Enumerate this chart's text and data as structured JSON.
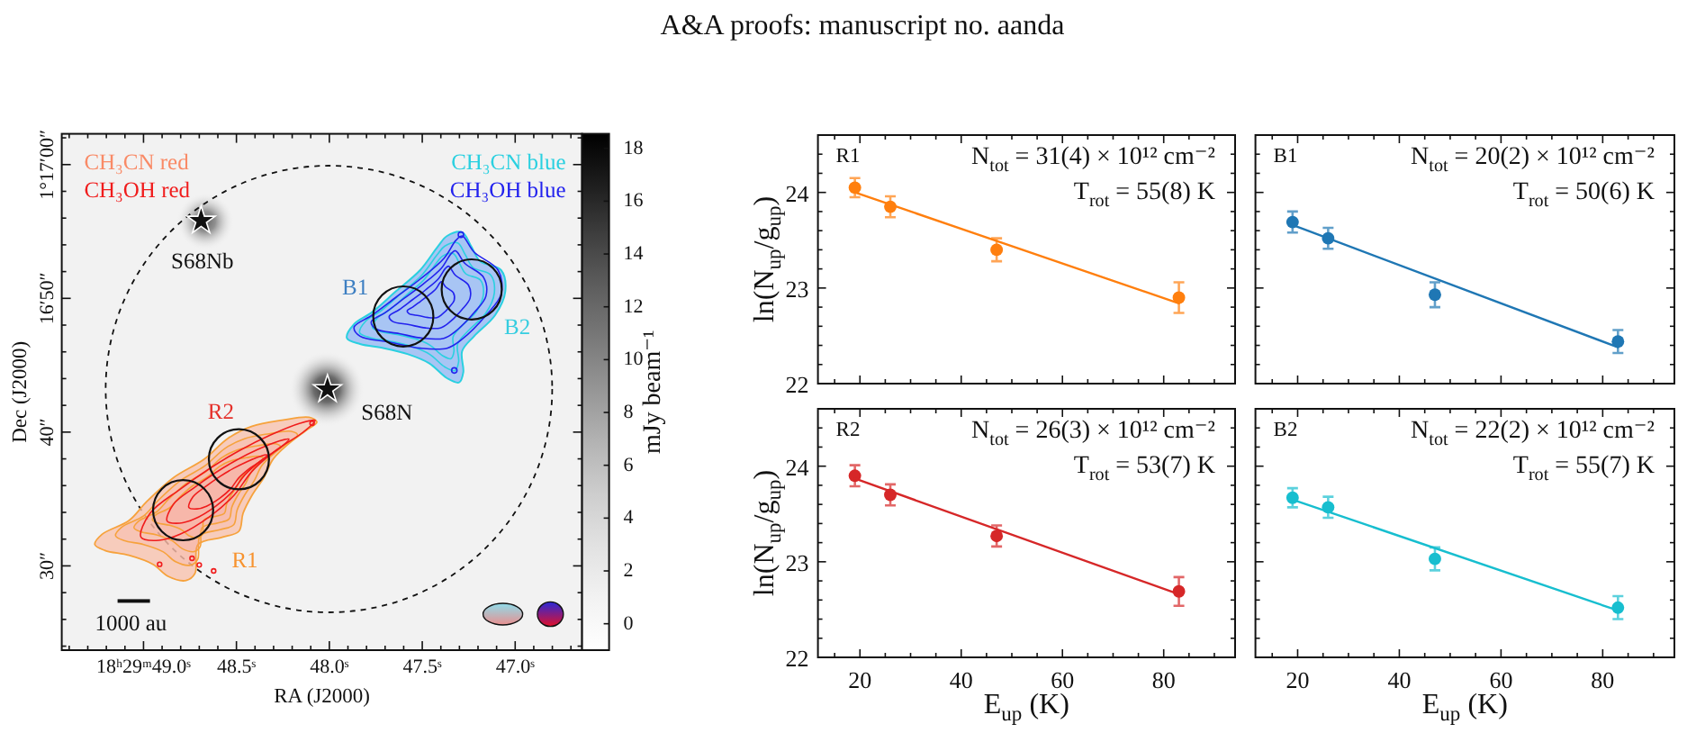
{
  "chart_data": [
    {
      "type": "scatter",
      "xlabel": "RA (J2000)",
      "ylabel": "Dec (J2000)",
      "clabel": "mJy beam⁻¹",
      "xlim": [
        49.44,
        46.64
      ],
      "ylim": [
        23.7,
        62.3
      ],
      "xticks": [
        {
          "value": 49.4,
          "label": null
        },
        {
          "value": 49.3,
          "label": null
        },
        {
          "value": 49.2,
          "label": null
        },
        {
          "value": 49.1,
          "label": null
        },
        {
          "value": 49.0,
          "label": "18ʰ29ᵐ49.0ˢ"
        },
        {
          "value": 48.9,
          "label": null
        },
        {
          "value": 48.8,
          "label": null
        },
        {
          "value": 48.7,
          "label": null
        },
        {
          "value": 48.6,
          "label": null
        },
        {
          "value": 48.5,
          "label": "48.5ˢ"
        },
        {
          "value": 48.4,
          "label": null
        },
        {
          "value": 48.3,
          "label": null
        },
        {
          "value": 48.2,
          "label": null
        },
        {
          "value": 48.1,
          "label": null
        },
        {
          "value": 48.0,
          "label": "48.0ˢ"
        },
        {
          "value": 47.9,
          "label": null
        },
        {
          "value": 47.8,
          "label": null
        },
        {
          "value": 47.7,
          "label": null
        },
        {
          "value": 47.6,
          "label": null
        },
        {
          "value": 47.5,
          "label": "47.5ˢ"
        },
        {
          "value": 47.4,
          "label": null
        },
        {
          "value": 47.3,
          "label": null
        },
        {
          "value": 47.2,
          "label": null
        },
        {
          "value": 47.1,
          "label": null
        },
        {
          "value": 47.0,
          "label": "47.0ˢ"
        },
        {
          "value": 46.9,
          "label": null
        },
        {
          "value": 46.8,
          "label": null
        },
        {
          "value": 46.7,
          "label": null
        }
      ],
      "yticks": [
        {
          "value": 24,
          "label": null
        },
        {
          "value": 26,
          "label": null
        },
        {
          "value": 28,
          "label": null
        },
        {
          "value": 30,
          "label": "30″"
        },
        {
          "value": 32,
          "label": null
        },
        {
          "value": 34,
          "label": null
        },
        {
          "value": 36,
          "label": null
        },
        {
          "value": 38,
          "label": null
        },
        {
          "value": 40,
          "label": "40″"
        },
        {
          "value": 42,
          "label": null
        },
        {
          "value": 44,
          "label": null
        },
        {
          "value": 46,
          "label": null
        },
        {
          "value": 48,
          "label": null
        },
        {
          "value": 50,
          "label": "16′50″"
        },
        {
          "value": 52,
          "label": null
        },
        {
          "value": 54,
          "label": null
        },
        {
          "value": 56,
          "label": null
        },
        {
          "value": 58,
          "label": null
        },
        {
          "value": 60,
          "label": "1°17′00″"
        },
        {
          "value": 62,
          "label": null
        }
      ],
      "clim": [
        -1.0,
        18.55
      ],
      "cticks": [
        0,
        2,
        4,
        6,
        8,
        10,
        12,
        14,
        16,
        18
      ],
      "series": [
        {
          "type": "scatter",
          "marker": "star",
          "color": "#111111",
          "x": [
            48.69,
            48.01
          ],
          "values": [
            55.8,
            43.2
          ]
        }
      ],
      "annotations": [
        "A&A proofs: manuscript no. aanda",
        "CH₃CN red",
        "CH₃OH red",
        "CH₃CN blue",
        "CH₃OH blue",
        {
          "text": "S68Nb",
          "x": 48.69,
          "y": 55.8
        },
        {
          "text": "S68N",
          "x": 48.01,
          "y": 43.2
        },
        "B1",
        "B2",
        "R2",
        "R1",
        "1000 au"
      ]
    },
    {
      "type": "scatter",
      "xlim": [
        11.7,
        94.1
      ],
      "ylim": [
        22,
        24.6
      ],
      "tick_labels": "y",
      "ylabel": "ln(N$_{up}$/g$_{up}$)",
      "xticks": [
        {
          "value": 15,
          "label": null
        },
        20,
        {
          "value": 25,
          "label": null
        },
        {
          "value": 30,
          "label": null
        },
        {
          "value": 35,
          "label": null
        },
        40,
        {
          "value": 45,
          "label": null
        },
        {
          "value": 50,
          "label": null
        },
        {
          "value": 55,
          "label": null
        },
        60,
        {
          "value": 65,
          "label": null
        },
        {
          "value": 70,
          "label": null
        },
        {
          "value": 75,
          "label": null
        },
        80,
        {
          "value": 85,
          "label": null
        },
        {
          "value": 90,
          "label": null
        }
      ],
      "yticks": [
        22,
        {
          "value": 22.2,
          "label": null
        },
        {
          "value": 22.4,
          "label": null
        },
        {
          "value": 22.6,
          "label": null
        },
        {
          "value": 22.8,
          "label": null
        },
        23,
        {
          "value": 23.2,
          "label": null
        },
        {
          "value": 23.4,
          "label": null
        },
        {
          "value": 23.6,
          "label": null
        },
        {
          "value": 23.8,
          "label": null
        },
        24,
        {
          "value": 24.2,
          "label": null
        },
        {
          "value": 24.4,
          "label": null
        }
      ],
      "annotations": [
        "R1",
        "N$_{tot}$ = 31(4) × 10¹² cm⁻²",
        "T$_{rot}$ = 55(8) K"
      ],
      "series": [
        {
          "type": "scatter",
          "color": "#ff7f0e",
          "marker": "circle",
          "x": [
            19,
            26,
            47,
            83
          ],
          "values": [
            24.05,
            23.85,
            23.4,
            22.9
          ],
          "errors": [
            0.1,
            0.11,
            0.12,
            0.16
          ]
        },
        {
          "type": "line",
          "color": "#ff7f0e",
          "marker": "none",
          "x": [
            19,
            83
          ],
          "values": [
            24.0,
            22.84
          ]
        }
      ]
    },
    {
      "type": "scatter",
      "xlim": [
        11.7,
        94.1
      ],
      "ylim": [
        22,
        24.6
      ],
      "tick_labels": false,
      "xticks": [
        {
          "value": 15,
          "label": null
        },
        20,
        {
          "value": 25,
          "label": null
        },
        {
          "value": 30,
          "label": null
        },
        {
          "value": 35,
          "label": null
        },
        40,
        {
          "value": 45,
          "label": null
        },
        {
          "value": 50,
          "label": null
        },
        {
          "value": 55,
          "label": null
        },
        60,
        {
          "value": 65,
          "label": null
        },
        {
          "value": 70,
          "label": null
        },
        {
          "value": 75,
          "label": null
        },
        80,
        {
          "value": 85,
          "label": null
        },
        {
          "value": 90,
          "label": null
        }
      ],
      "yticks": [
        22,
        {
          "value": 22.2,
          "label": null
        },
        {
          "value": 22.4,
          "label": null
        },
        {
          "value": 22.6,
          "label": null
        },
        {
          "value": 22.8,
          "label": null
        },
        23,
        {
          "value": 23.2,
          "label": null
        },
        {
          "value": 23.4,
          "label": null
        },
        {
          "value": 23.6,
          "label": null
        },
        {
          "value": 23.8,
          "label": null
        },
        24,
        {
          "value": 24.2,
          "label": null
        },
        {
          "value": 24.4,
          "label": null
        }
      ],
      "annotations": [
        "B1",
        "N$_{tot}$ = 20(2) × 10¹² cm⁻²",
        "T$_{rot}$ = 50(6) K"
      ],
      "series": [
        {
          "type": "scatter",
          "color": "#1f77b4",
          "marker": "circle",
          "x": [
            19,
            26,
            47,
            83
          ],
          "values": [
            23.69,
            23.52,
            22.93,
            22.44
          ],
          "errors": [
            0.11,
            0.11,
            0.13,
            0.12
          ]
        },
        {
          "type": "line",
          "color": "#1f77b4",
          "marker": "none",
          "x": [
            19,
            83
          ],
          "values": [
            23.66,
            22.38
          ]
        }
      ]
    },
    {
      "type": "scatter",
      "xlim": [
        11.7,
        94.1
      ],
      "ylim": [
        22,
        24.6
      ],
      "xlabel": "E$_{up}$ (K)",
      "ylabel": "ln(N$_{up}$/g$_{up}$)",
      "xticks": [
        {
          "value": 15,
          "label": null
        },
        20,
        {
          "value": 25,
          "label": null
        },
        {
          "value": 30,
          "label": null
        },
        {
          "value": 35,
          "label": null
        },
        40,
        {
          "value": 45,
          "label": null
        },
        {
          "value": 50,
          "label": null
        },
        {
          "value": 55,
          "label": null
        },
        60,
        {
          "value": 65,
          "label": null
        },
        {
          "value": 70,
          "label": null
        },
        {
          "value": 75,
          "label": null
        },
        80,
        {
          "value": 85,
          "label": null
        },
        {
          "value": 90,
          "label": null
        }
      ],
      "yticks": [
        22,
        {
          "value": 22.2,
          "label": null
        },
        {
          "value": 22.4,
          "label": null
        },
        {
          "value": 22.6,
          "label": null
        },
        {
          "value": 22.8,
          "label": null
        },
        23,
        {
          "value": 23.2,
          "label": null
        },
        {
          "value": 23.4,
          "label": null
        },
        {
          "value": 23.6,
          "label": null
        },
        {
          "value": 23.8,
          "label": null
        },
        24,
        {
          "value": 24.2,
          "label": null
        },
        {
          "value": 24.4,
          "label": null
        }
      ],
      "annotations": [
        "R2",
        "N$_{tot}$ = 26(3) × 10¹² cm⁻²",
        "T$_{rot}$ = 53(7) K"
      ],
      "series": [
        {
          "type": "scatter",
          "color": "#d62728",
          "marker": "circle",
          "x": [
            19,
            26,
            47,
            83
          ],
          "values": [
            23.9,
            23.7,
            23.27,
            22.69
          ],
          "errors": [
            0.11,
            0.11,
            0.11,
            0.15
          ]
        },
        {
          "type": "line",
          "color": "#d62728",
          "marker": "none",
          "x": [
            19,
            83
          ],
          "values": [
            23.87,
            22.66
          ]
        }
      ]
    },
    {
      "type": "scatter",
      "xlim": [
        11.7,
        94.1
      ],
      "ylim": [
        22,
        24.6
      ],
      "tick_labels": "x",
      "xlabel": "E$_{up}$ (K)",
      "xticks": [
        {
          "value": 15,
          "label": null
        },
        20,
        {
          "value": 25,
          "label": null
        },
        {
          "value": 30,
          "label": null
        },
        {
          "value": 35,
          "label": null
        },
        40,
        {
          "value": 45,
          "label": null
        },
        {
          "value": 50,
          "label": null
        },
        {
          "value": 55,
          "label": null
        },
        60,
        {
          "value": 65,
          "label": null
        },
        {
          "value": 70,
          "label": null
        },
        {
          "value": 75,
          "label": null
        },
        80,
        {
          "value": 85,
          "label": null
        },
        {
          "value": 90,
          "label": null
        }
      ],
      "yticks": [
        22,
        {
          "value": 22.2,
          "label": null
        },
        {
          "value": 22.4,
          "label": null
        },
        {
          "value": 22.6,
          "label": null
        },
        {
          "value": 22.8,
          "label": null
        },
        23,
        {
          "value": 23.2,
          "label": null
        },
        {
          "value": 23.4,
          "label": null
        },
        {
          "value": 23.6,
          "label": null
        },
        {
          "value": 23.8,
          "label": null
        },
        24,
        {
          "value": 24.2,
          "label": null
        },
        {
          "value": 24.4,
          "label": null
        }
      ],
      "annotations": [
        "B2",
        "N$_{tot}$ = 22(2) × 10¹² cm⁻²",
        "T$_{rot}$ = 55(7) K"
      ],
      "series": [
        {
          "type": "scatter",
          "color": "#17becf",
          "marker": "circle",
          "x": [
            19,
            26,
            47,
            83
          ],
          "values": [
            23.67,
            23.57,
            23.03,
            22.52
          ],
          "errors": [
            0.1,
            0.11,
            0.12,
            0.12
          ]
        },
        {
          "type": "line",
          "color": "#17becf",
          "marker": "none",
          "x": [
            19,
            83
          ],
          "values": [
            23.65,
            22.49
          ]
        }
      ]
    }
  ]
}
